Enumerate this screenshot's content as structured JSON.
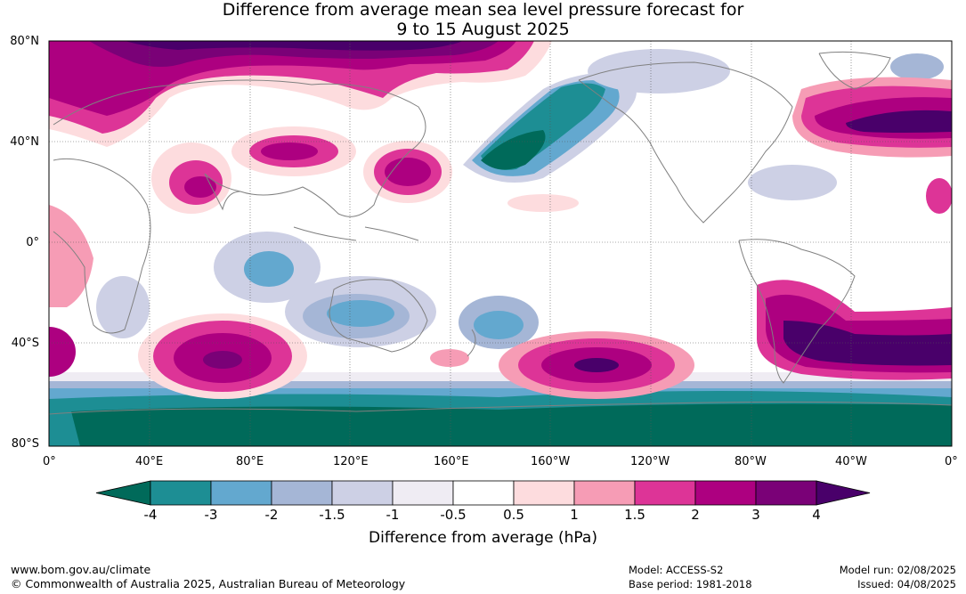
{
  "title": {
    "line1": "Difference from average mean sea level pressure forecast for",
    "line2": "9 to 15 August 2025"
  },
  "map": {
    "lat_labels": [
      "80°N",
      "40°N",
      "0°",
      "40°S",
      "80°S"
    ],
    "lon_labels": [
      "0°",
      "40°E",
      "80°E",
      "120°E",
      "160°E",
      "160°W",
      "120°W",
      "80°W",
      "40°W",
      "0°"
    ],
    "colors": {
      "ocean": "#ffffff",
      "coast": "#808080",
      "grid": "#555555"
    }
  },
  "colorbar": {
    "ticks": [
      "-4",
      "-3",
      "-2",
      "-1.5",
      "-1",
      "-0.5",
      "0.5",
      "1",
      "1.5",
      "2",
      "3",
      "4"
    ],
    "colors": [
      "#006a5a",
      "#1d8e94",
      "#63a8cf",
      "#a5b6d6",
      "#cdd0e5",
      "#efecf3",
      "#ffffff",
      "#fddcde",
      "#f69cb5",
      "#dd3497",
      "#ad0080",
      "#7a0177",
      "#49006a"
    ],
    "label": "Difference from average (hPa)"
  },
  "footer": {
    "url": "www.bom.gov.au/climate",
    "copyright": "© Commonwealth of Australia 2025, Australian Bureau of Meteorology",
    "model": "Model: ACCESS-S2",
    "base_period": "Base period: 1981-2018",
    "model_run": "Model run: 02/08/2025",
    "issued": "Issued: 04/08/2025"
  }
}
